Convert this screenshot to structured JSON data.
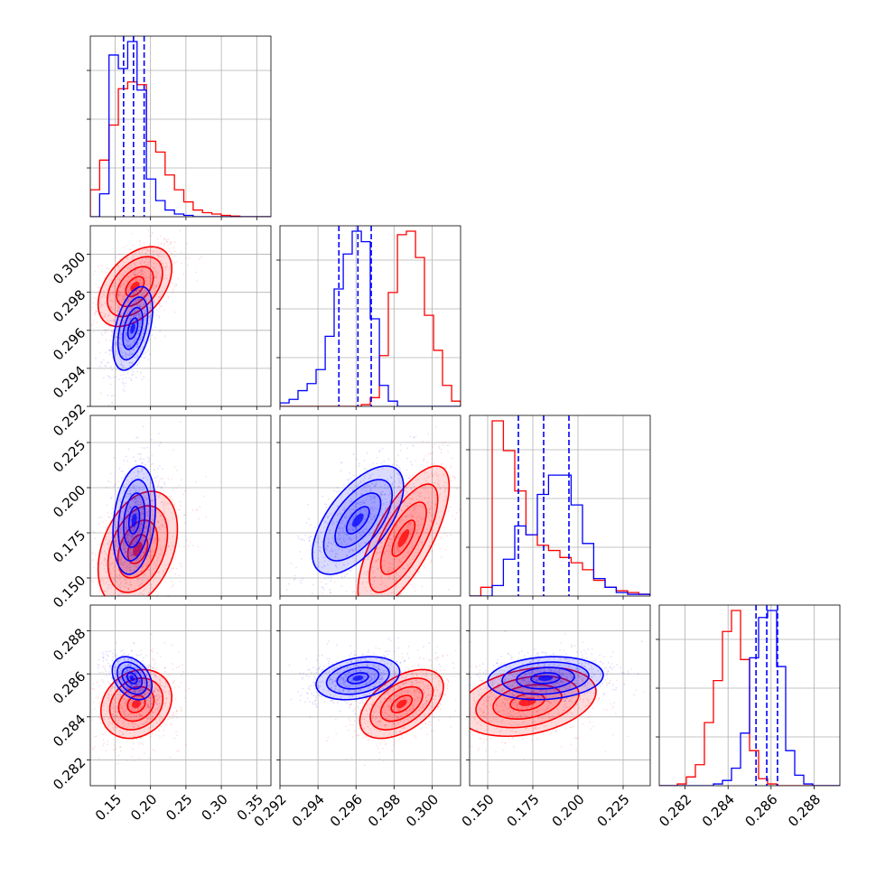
{
  "chart_data": {
    "type": "corner",
    "grid": true,
    "series": [
      {
        "name": "",
        "color": "#ff0000",
        "quantile_lines": false
      },
      {
        "name": "",
        "color": "#0000ff",
        "quantile_lines": true
      }
    ],
    "parameters": [
      {
        "range": [
          0.115,
          0.37
        ],
        "ticks": [
          0.15,
          0.2,
          0.25,
          0.3,
          0.35
        ],
        "tick_labels": [
          "0.15",
          "0.20",
          "0.25",
          "0.30",
          "0.35"
        ]
      },
      {
        "range": [
          0.292,
          0.3015
        ],
        "ticks": [
          0.292,
          0.294,
          0.296,
          0.298,
          0.3
        ],
        "tick_labels": [
          "0.292",
          "0.294",
          "0.296",
          "0.298",
          "0.300"
        ]
      },
      {
        "range": [
          0.14,
          0.24
        ],
        "ticks": [
          0.15,
          0.175,
          0.2,
          0.225
        ],
        "tick_labels": [
          "0.150",
          "0.175",
          "0.200",
          "0.225"
        ]
      },
      {
        "range": [
          0.2808,
          0.2892
        ],
        "ticks": [
          0.282,
          0.284,
          0.286,
          0.288
        ],
        "tick_labels": [
          "0.282",
          "0.284",
          "0.286",
          "0.288"
        ]
      }
    ],
    "histograms": [
      {
        "edges": [
          0.115,
          0.1282,
          0.1414,
          0.1546,
          0.1678,
          0.181,
          0.1942,
          0.2074,
          0.2206,
          0.2338,
          0.247,
          0.2602,
          0.2734,
          0.2866,
          0.2998,
          0.313,
          0.3262,
          0.3394,
          0.3526,
          0.3658,
          0.37
        ],
        "red": [
          0.2,
          0.42,
          0.68,
          0.95,
          1.0,
          0.98,
          0.56,
          0.48,
          0.31,
          0.2,
          0.11,
          0.05,
          0.03,
          0.02,
          0.01,
          0.005,
          0.0,
          0.0,
          0.0,
          0.0
        ],
        "blue": [
          0.0,
          0.17,
          1.2,
          1.1,
          1.3,
          0.94,
          0.28,
          0.12,
          0.05,
          0.02,
          0.01,
          0.0,
          0.0,
          0.0,
          0.0,
          0.0,
          0.0,
          0.0,
          0.0,
          0.0
        ],
        "blue_quantiles": [
          0.162,
          0.176,
          0.191
        ]
      },
      {
        "edges": [
          0.292,
          0.29248,
          0.29295,
          0.29343,
          0.2939,
          0.29438,
          0.29485,
          0.29533,
          0.2958,
          0.29628,
          0.29675,
          0.29723,
          0.2977,
          0.29818,
          0.29865,
          0.29913,
          0.2996,
          0.30008,
          0.30055,
          0.30103,
          0.3015
        ],
        "red": [
          0.0,
          0.0,
          0.0,
          0.0,
          0.0,
          0.0,
          0.0,
          0.0,
          0.0,
          0.01,
          0.05,
          0.29,
          0.65,
          0.98,
          1.0,
          0.85,
          0.52,
          0.32,
          0.12,
          0.03
        ],
        "blue": [
          0.02,
          0.04,
          0.09,
          0.13,
          0.21,
          0.4,
          0.67,
          0.87,
          1.0,
          0.94,
          0.5,
          0.12,
          0.03,
          0.0,
          0.0,
          0.0,
          0.0,
          0.0,
          0.0,
          0.0
        ],
        "blue_quantiles": [
          0.2951,
          0.2961,
          0.2968
        ]
      },
      {
        "edges": [
          0.14,
          0.1462,
          0.1525,
          0.1587,
          0.165,
          0.1712,
          0.1775,
          0.1837,
          0.19,
          0.1962,
          0.2025,
          0.2087,
          0.215,
          0.2212,
          0.2275,
          0.2337,
          0.24
        ],
        "red": [
          0.0,
          0.05,
          1.0,
          0.83,
          0.6,
          0.35,
          0.29,
          0.26,
          0.22,
          0.19,
          0.15,
          0.09,
          0.05,
          0.03,
          0.02,
          0.01
        ],
        "blue": [
          0.0,
          0.0,
          0.06,
          0.21,
          0.4,
          0.35,
          0.58,
          0.69,
          0.69,
          0.52,
          0.3,
          0.1,
          0.05,
          0.02,
          0.01,
          0.01
        ],
        "blue_quantiles": [
          0.167,
          0.181,
          0.195
        ]
      },
      {
        "edges": [
          0.2808,
          0.28122,
          0.28164,
          0.28206,
          0.28248,
          0.2829,
          0.28332,
          0.28374,
          0.28416,
          0.28458,
          0.285,
          0.28542,
          0.28584,
          0.28626,
          0.28668,
          0.2871,
          0.28752,
          0.28794,
          0.28836,
          0.28878,
          0.2892
        ],
        "red": [
          0.0,
          0.0,
          0.01,
          0.05,
          0.12,
          0.36,
          0.6,
          0.88,
          1.0,
          0.72,
          0.2,
          0.04,
          0.01,
          0.0,
          0.0,
          0.0,
          0.0,
          0.0,
          0.0,
          0.0
        ],
        "blue": [
          0.0,
          0.0,
          0.0,
          0.0,
          0.0,
          0.0,
          0.01,
          0.03,
          0.1,
          0.3,
          0.73,
          0.96,
          1.0,
          0.68,
          0.2,
          0.06,
          0.01,
          0.0,
          0.0,
          0.0
        ],
        "blue_quantiles": [
          0.2853,
          0.2858,
          0.2863
        ]
      }
    ],
    "pairs": [
      {
        "row": 1,
        "col": 0,
        "red": {
          "mean": [
            0.178,
            0.2983
          ],
          "sd": [
            0.026,
            0.00105
          ],
          "rho": 0.45
        },
        "blue": {
          "mean": [
            0.175,
            0.2961
          ],
          "sd": [
            0.014,
            0.0011
          ],
          "rho": 0.45
        }
      },
      {
        "row": 2,
        "col": 0,
        "red": {
          "mean": [
            0.182,
            0.166
          ],
          "sd": [
            0.028,
            0.016
          ],
          "rho": 0.35
        },
        "blue": {
          "mean": [
            0.177,
            0.182
          ],
          "sd": [
            0.015,
            0.015
          ],
          "rho": 0.25
        }
      },
      {
        "row": 2,
        "col": 1,
        "red": {
          "mean": [
            0.2985,
            0.172
          ],
          "sd": [
            0.0012,
            0.02
          ],
          "rho": 0.72
        },
        "blue": {
          "mean": [
            0.2961,
            0.182
          ],
          "sd": [
            0.0012,
            0.015
          ],
          "rho": 0.62
        }
      },
      {
        "row": 3,
        "col": 0,
        "red": {
          "mean": [
            0.18,
            0.2846
          ],
          "sd": [
            0.025,
            0.0008
          ],
          "rho": 0.2
        },
        "blue": {
          "mean": [
            0.174,
            0.2858
          ],
          "sd": [
            0.014,
            0.0005
          ],
          "rho": -0.35
        }
      },
      {
        "row": 3,
        "col": 1,
        "red": {
          "mean": [
            0.2984,
            0.2846
          ],
          "sd": [
            0.0011,
            0.0008
          ],
          "rho": 0.5
        },
        "blue": {
          "mean": [
            0.2961,
            0.2858
          ],
          "sd": [
            0.0011,
            0.0005
          ],
          "rho": 0.3
        }
      },
      {
        "row": 3,
        "col": 2,
        "red": {
          "mean": [
            0.172,
            0.2847
          ],
          "sd": [
            0.019,
            0.0008
          ],
          "rho": 0.3
        },
        "blue": {
          "mean": [
            0.182,
            0.2858
          ],
          "sd": [
            0.016,
            0.0005
          ],
          "rho": 0.15
        }
      }
    ]
  }
}
